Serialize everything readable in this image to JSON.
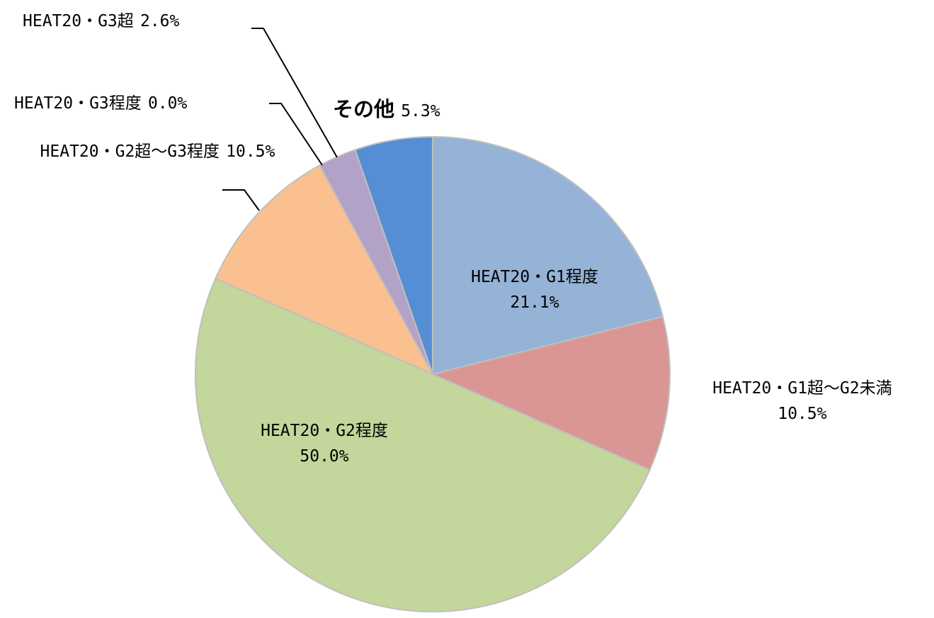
{
  "chart_data": {
    "type": "pie",
    "categories": [
      "HEAT20・G1程度",
      "HEAT20・G1超～G2未満",
      "HEAT20・G2程度",
      "HEAT20・G2超～G3程度",
      "HEAT20・G3程度",
      "HEAT20・G3超",
      "その他"
    ],
    "values": [
      21.1,
      10.5,
      50.0,
      10.5,
      0.0,
      2.6,
      5.3
    ],
    "value_labels": [
      "21.1%",
      "10.5%",
      "50.0%",
      "10.5%",
      "0.0%",
      "2.6%",
      "5.3%"
    ],
    "colors": [
      "#95b3d7",
      "#d99694",
      "#c3d69b",
      "#fac090",
      "#e46c0a",
      "#b3a2c7",
      "#558ed5"
    ]
  }
}
